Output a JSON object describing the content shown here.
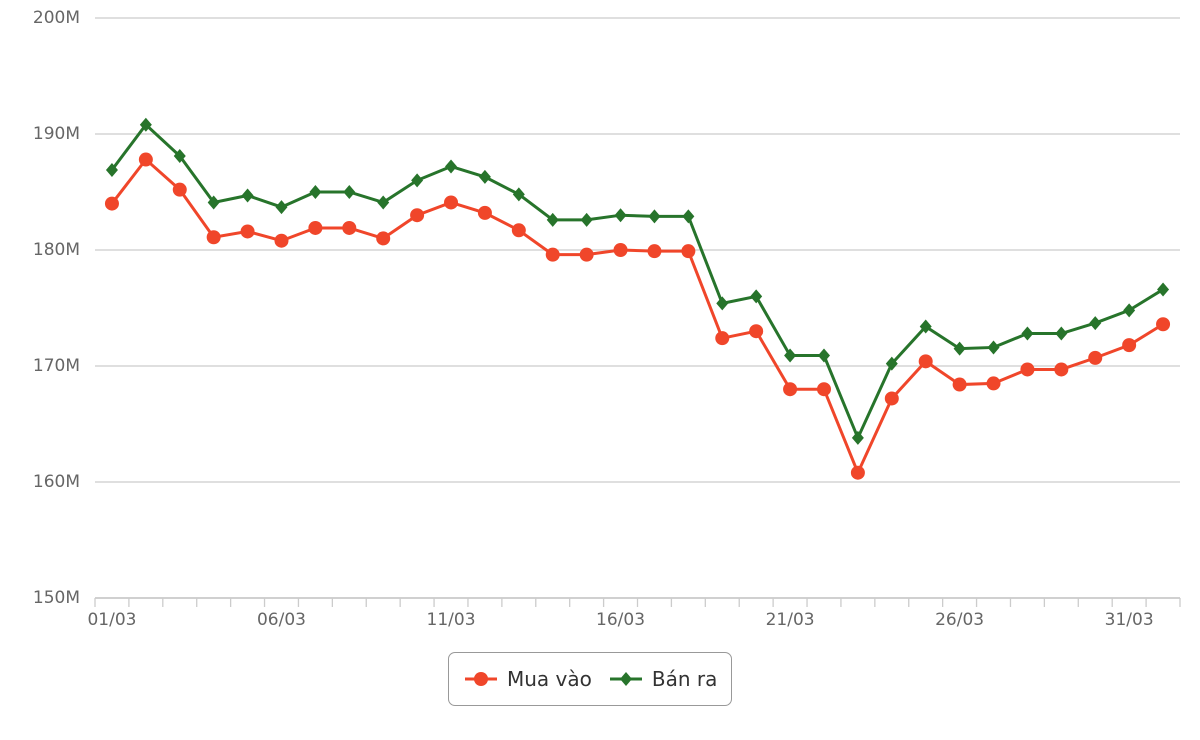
{
  "chart_data": {
    "type": "line",
    "categories": [
      "01/03",
      null,
      null,
      null,
      null,
      "06/03",
      null,
      null,
      null,
      null,
      "11/03",
      null,
      null,
      null,
      null,
      "16/03",
      null,
      null,
      null,
      null,
      "21/03",
      null,
      null,
      null,
      null,
      "26/03",
      null,
      null,
      null,
      null,
      "31/03",
      null
    ],
    "series": [
      {
        "name": "Mua vào",
        "color": "#f0462a",
        "marker": "circle",
        "values": [
          184000000,
          187800000,
          185200000,
          181100000,
          181600000,
          180800000,
          181900000,
          181900000,
          181000000,
          183000000,
          184100000,
          183200000,
          181700000,
          179600000,
          179600000,
          180000000,
          179900000,
          179900000,
          172400000,
          173000000,
          168000000,
          168000000,
          160800000,
          167200000,
          170400000,
          168400000,
          168500000,
          169700000,
          169700000,
          170700000,
          171800000,
          173600000
        ]
      },
      {
        "name": "Bán ra",
        "color": "#27742b",
        "marker": "diamond",
        "values": [
          186900000,
          190800000,
          188100000,
          184100000,
          184700000,
          183700000,
          185000000,
          185000000,
          184100000,
          186000000,
          187200000,
          186300000,
          184800000,
          182600000,
          182600000,
          183000000,
          182900000,
          182900000,
          175400000,
          176000000,
          170900000,
          170900000,
          163800000,
          170200000,
          173400000,
          171500000,
          171600000,
          172800000,
          172800000,
          173700000,
          174800000,
          176600000
        ]
      }
    ],
    "ylim": [
      150000000,
      200000000
    ],
    "yticks": [
      {
        "value": 150000000,
        "label": "150M"
      },
      {
        "value": 160000000,
        "label": "160M"
      },
      {
        "value": 170000000,
        "label": "170M"
      },
      {
        "value": 180000000,
        "label": "180M"
      },
      {
        "value": 190000000,
        "label": "190M"
      },
      {
        "value": 200000000,
        "label": "200M"
      }
    ],
    "grid": true
  }
}
